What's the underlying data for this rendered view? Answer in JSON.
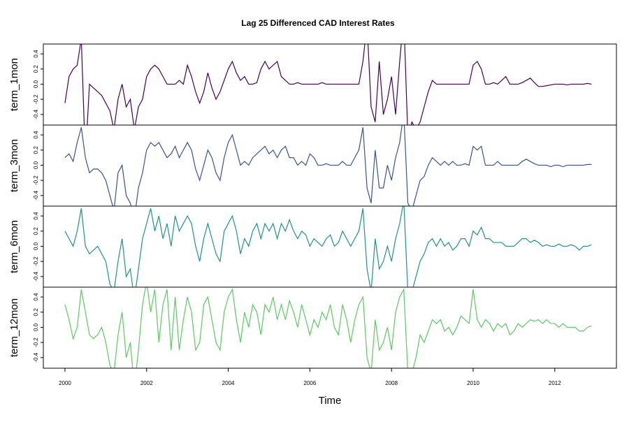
{
  "chart_data": {
    "type": "line",
    "title": "Lag 25 Differenced CAD Interest Rates",
    "x_label": "Time",
    "xlim": [
      1999.47,
      2013.51
    ],
    "xticks": [
      2000,
      2002,
      2004,
      2006,
      2008,
      2010,
      2012
    ],
    "ylim": [
      -0.54,
      0.53
    ],
    "yticks": [
      -0.4,
      -0.2,
      {
        "value": 0,
        "label": "0.0"
      },
      0.2,
      0.4
    ],
    "x": [
      2000,
      2000.1,
      2000.2,
      2000.3,
      2000.4,
      2000.5,
      2000.6,
      2000.7,
      2000.8,
      2000.9,
      2001,
      2001.1,
      2001.2,
      2001.3,
      2001.4,
      2001.5,
      2001.6,
      2001.7,
      2001.8,
      2001.9,
      2002,
      2002.1,
      2002.2,
      2002.3,
      2002.4,
      2002.5,
      2002.6,
      2002.7,
      2002.8,
      2002.9,
      2003,
      2003.1,
      2003.2,
      2003.3,
      2003.4,
      2003.5,
      2003.6,
      2003.7,
      2003.8,
      2003.9,
      2004,
      2004.1,
      2004.2,
      2004.3,
      2004.4,
      2004.5,
      2004.6,
      2004.7,
      2004.8,
      2004.9,
      2005,
      2005.1,
      2005.2,
      2005.3,
      2005.4,
      2005.5,
      2005.6,
      2005.7,
      2005.8,
      2005.9,
      2006,
      2006.1,
      2006.2,
      2006.3,
      2006.4,
      2006.5,
      2006.6,
      2006.7,
      2006.8,
      2006.9,
      2007,
      2007.1,
      2007.2,
      2007.3,
      2007.4,
      2007.5,
      2007.6,
      2007.7,
      2007.8,
      2007.9,
      2008,
      2008.1,
      2008.2,
      2008.3,
      2008.4,
      2008.5,
      2008.6,
      2008.7,
      2008.8,
      2008.9,
      2009,
      2009.1,
      2009.2,
      2009.3,
      2009.4,
      2009.5,
      2009.6,
      2009.7,
      2009.8,
      2009.9,
      2010,
      2010.1,
      2010.2,
      2010.3,
      2010.4,
      2010.5,
      2010.6,
      2010.7,
      2010.8,
      2010.9,
      2011,
      2011.1,
      2011.2,
      2011.3,
      2011.4,
      2011.5,
      2011.6,
      2011.7,
      2011.8,
      2011.9,
      2012,
      2012.1,
      2012.2,
      2012.3,
      2012.4,
      2012.5,
      2012.6,
      2012.7,
      2012.8,
      2012.9
    ],
    "series": [
      {
        "name": "term_1mon",
        "color": "#440154",
        "values": [
          -0.25,
          0.1,
          0.2,
          0.25,
          0.6,
          -1.0,
          0.0,
          -0.05,
          -0.1,
          -0.15,
          -0.25,
          -0.35,
          -0.6,
          -0.2,
          0.0,
          -0.3,
          -0.2,
          -0.6,
          -0.3,
          -0.2,
          0.1,
          0.2,
          0.25,
          0.2,
          0.1,
          0.0,
          0.0,
          0.0,
          0.05,
          0.0,
          0.25,
          0.1,
          -0.1,
          -0.25,
          -0.1,
          0.15,
          -0.05,
          -0.2,
          -0.1,
          0.05,
          0.2,
          0.3,
          0.15,
          0.05,
          0.1,
          0.0,
          0.0,
          0.02,
          0.2,
          0.3,
          0.2,
          0.25,
          0.3,
          0.1,
          0.05,
          0.0,
          0.0,
          0.02,
          0.0,
          0.0,
          0.0,
          0.0,
          0.0,
          0.02,
          0.0,
          0.0,
          0.0,
          0.0,
          0.0,
          0.0,
          0.0,
          0.0,
          0.0,
          0.3,
          0.8,
          -0.3,
          -0.5,
          0.3,
          -0.4,
          -0.2,
          0.1,
          -0.4,
          0.3,
          0.9,
          -0.7,
          -0.5,
          -0.6,
          -0.5,
          -0.3,
          -0.1,
          0.05,
          0.0,
          0.0,
          0.0,
          0.0,
          0.0,
          0.0,
          0.0,
          0.0,
          0.0,
          0.25,
          0.3,
          0.2,
          0.0,
          0.0,
          0.02,
          0.0,
          0.05,
          0.1,
          0.0,
          0.0,
          0.0,
          0.02,
          0.05,
          0.08,
          0.02,
          -0.03,
          -0.03,
          -0.02,
          -0.01,
          0.0,
          0.0,
          0.0,
          -0.01,
          0.0,
          0.0,
          0.0,
          0.0,
          0.01,
          0.0
        ]
      },
      {
        "name": "term_3mon",
        "color": "#3b528b",
        "values": [
          0.1,
          0.15,
          0.05,
          0.3,
          0.5,
          0.1,
          -0.1,
          -0.05,
          -0.05,
          -0.1,
          -0.2,
          -0.4,
          -0.6,
          -0.1,
          0.0,
          -0.4,
          -0.5,
          -0.7,
          -0.3,
          -0.1,
          0.2,
          0.3,
          0.25,
          0.3,
          0.2,
          0.1,
          0.15,
          0.25,
          0.1,
          0.2,
          0.3,
          0.2,
          -0.05,
          -0.2,
          0.0,
          0.2,
          0.1,
          -0.1,
          -0.2,
          0.1,
          0.3,
          0.4,
          0.2,
          0.0,
          0.05,
          0.0,
          0.1,
          0.15,
          0.2,
          0.25,
          0.15,
          0.2,
          0.1,
          0.2,
          0.25,
          0.1,
          0.1,
          0.0,
          0.05,
          0.0,
          0.15,
          0.1,
          0.0,
          0.0,
          0.02,
          0.0,
          0.0,
          0.0,
          0.05,
          0.0,
          0.0,
          0.1,
          0.2,
          0.5,
          -0.3,
          -0.5,
          0.2,
          -0.3,
          -0.3,
          0.0,
          -0.2,
          0.1,
          0.3,
          0.7,
          -0.5,
          -0.6,
          -0.4,
          -0.2,
          -0.15,
          0.0,
          0.1,
          0.05,
          0.0,
          0.05,
          0.0,
          0.05,
          0.0,
          0.0,
          0.02,
          0.0,
          0.25,
          0.2,
          0.25,
          0.0,
          0.0,
          0.0,
          0.05,
          0.0,
          0.0,
          0.0,
          0.0,
          0.0,
          0.05,
          0.08,
          0.05,
          0.02,
          0.0,
          0.0,
          0.0,
          -0.02,
          0.0,
          0.0,
          -0.02,
          0.0,
          0.0,
          0.0,
          0.0,
          0.0,
          0.01,
          0.01
        ]
      },
      {
        "name": "term_6mon",
        "color": "#21908c",
        "values": [
          0.2,
          0.1,
          0.0,
          0.2,
          0.5,
          0.0,
          -0.1,
          -0.05,
          0.0,
          -0.1,
          -0.2,
          -0.5,
          -0.6,
          -0.2,
          0.1,
          -0.4,
          -0.3,
          -0.7,
          -0.3,
          0.1,
          0.3,
          0.5,
          0.2,
          0.4,
          0.1,
          0.3,
          0.0,
          0.4,
          0.2,
          0.3,
          0.4,
          0.3,
          0.0,
          -0.2,
          0.1,
          0.3,
          0.1,
          -0.1,
          -0.2,
          0.2,
          0.3,
          0.4,
          0.2,
          -0.1,
          0.1,
          0.0,
          0.2,
          0.3,
          0.1,
          0.3,
          0.2,
          0.3,
          0.1,
          0.3,
          0.2,
          0.35,
          0.2,
          0.1,
          0.2,
          0.15,
          0.0,
          0.1,
          0.05,
          0.0,
          0.1,
          0.15,
          0.0,
          0.05,
          0.2,
          0.1,
          0.0,
          0.1,
          0.2,
          0.5,
          -0.3,
          -0.6,
          0.1,
          -0.3,
          -0.2,
          0.0,
          -0.2,
          0.1,
          0.3,
          0.6,
          -0.6,
          -0.6,
          -0.4,
          -0.2,
          -0.1,
          0.05,
          0.1,
          0.0,
          0.1,
          0.0,
          0.05,
          -0.05,
          0.0,
          0.1,
          0.1,
          0.0,
          0.2,
          0.15,
          0.25,
          0.1,
          0.1,
          0.05,
          0.05,
          0.05,
          0.0,
          0.0,
          0.0,
          0.05,
          0.1,
          0.1,
          0.05,
          0.08,
          0.05,
          0.0,
          0.02,
          0.0,
          0.0,
          0.03,
          0.0,
          0.0,
          0.02,
          0.0,
          -0.05,
          0.0,
          0.0,
          0.02
        ]
      },
      {
        "name": "term_12mon",
        "color": "#5dc863",
        "values": [
          0.3,
          0.1,
          -0.15,
          0.0,
          0.5,
          0.2,
          -0.1,
          -0.15,
          -0.1,
          0.0,
          -0.2,
          -0.5,
          -0.6,
          -0.1,
          0.2,
          -0.4,
          -0.2,
          -0.8,
          -0.3,
          0.3,
          0.6,
          0.2,
          0.5,
          -0.2,
          0.3,
          0.5,
          -0.3,
          0.4,
          -0.3,
          0.1,
          0.4,
          0.2,
          -0.3,
          -0.2,
          0.3,
          0.4,
          0.1,
          -0.2,
          -0.3,
          0.2,
          0.4,
          0.5,
          0.1,
          -0.2,
          0.2,
          0.0,
          0.3,
          0.2,
          -0.1,
          0.3,
          0.2,
          0.4,
          0.1,
          0.3,
          0.1,
          0.35,
          0.2,
          0.0,
          0.3,
          0.1,
          -0.1,
          0.1,
          0.0,
          0.2,
          0.1,
          0.3,
          0.0,
          -0.1,
          0.3,
          0.1,
          -0.2,
          0.1,
          0.3,
          0.4,
          -0.4,
          -0.6,
          0.1,
          -0.3,
          -0.2,
          0.0,
          -0.3,
          0.2,
          0.4,
          0.5,
          -0.6,
          -0.6,
          -0.4,
          -0.1,
          -0.2,
          -0.05,
          0.1,
          0.05,
          0.1,
          -0.05,
          0.0,
          -0.1,
          0.0,
          0.15,
          0.1,
          0.05,
          0.5,
          0.1,
          0.0,
          0.1,
          0.05,
          -0.05,
          0.05,
          0.0,
          0.05,
          -0.1,
          -0.05,
          0.05,
          0.0,
          0.05,
          0.1,
          0.08,
          0.1,
          0.05,
          0.1,
          0.05,
          0.05,
          0.0,
          0.05,
          0.0,
          0.0,
          0.0,
          -0.05,
          -0.05,
          0.0,
          0.02
        ]
      }
    ]
  }
}
